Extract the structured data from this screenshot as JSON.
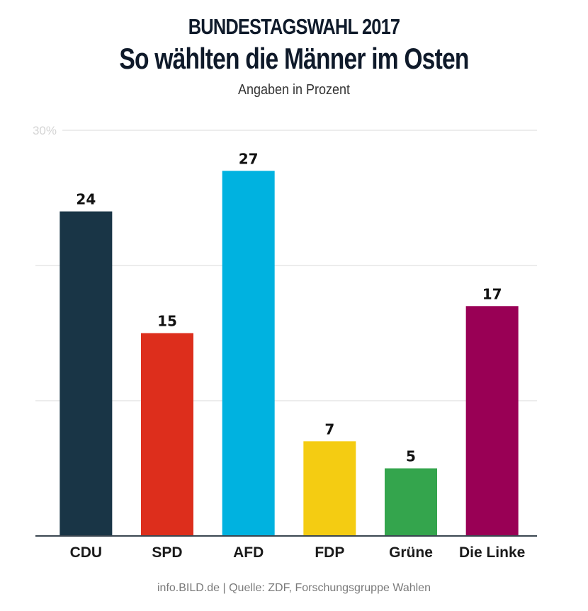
{
  "header": {
    "kicker": "BUNDESTAGSWAHL 2017",
    "title": "So wählten die Männer im Osten",
    "subtitle": "Angaben in Prozent"
  },
  "footer": {
    "source": "info.BILD.de | Quelle: ZDF, Forschungsgruppe Wahlen"
  },
  "chart_data": {
    "type": "bar",
    "title": "So wählten die Männer im Osten",
    "subtitle": "Angaben in Prozent",
    "xlabel": "",
    "ylabel": "",
    "ylim": [
      0,
      30
    ],
    "yticks": [
      0,
      10,
      20,
      30
    ],
    "ytick_labels": [
      "",
      "",
      "",
      "30%"
    ],
    "grid": true,
    "categories": [
      "CDU",
      "SPD",
      "AFD",
      "FDP",
      "Grüne",
      "Die Linke"
    ],
    "values": [
      24,
      15,
      27,
      7,
      5,
      17
    ],
    "colors": [
      "#193546",
      "#dd2e1c",
      "#00b2e0",
      "#f4cc12",
      "#34a54d",
      "#990055"
    ],
    "data_labels": [
      "24",
      "15",
      "27",
      "7",
      "5",
      "17"
    ]
  }
}
